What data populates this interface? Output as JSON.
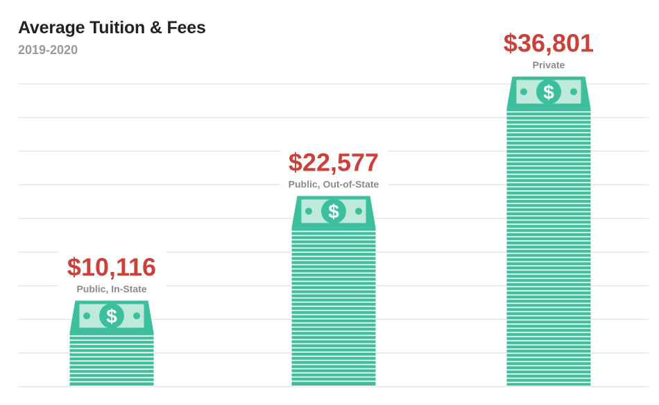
{
  "header": {
    "title": "Average Tuition & Fees",
    "subtitle": "2019-2020"
  },
  "colors": {
    "stack": "#3dbf9d",
    "stack_dark": "#2ea583",
    "bill_light": "#bfeadb",
    "value_text": "#c8423b",
    "gridline": "#e2e2e2"
  },
  "icons": {
    "bill": "dollar-bill-icon"
  },
  "chart_data": {
    "type": "bar",
    "title": "Average Tuition & Fees",
    "subtitle": "2019-2020",
    "categories": [
      "Public, In-State",
      "Public, Out-of-State",
      "Private"
    ],
    "values": [
      10116,
      22577,
      36801
    ],
    "value_labels": [
      "$10,116",
      "$22,577",
      "$36,801"
    ],
    "ylim": [
      0,
      45000
    ],
    "grid": true,
    "legend": "none"
  }
}
